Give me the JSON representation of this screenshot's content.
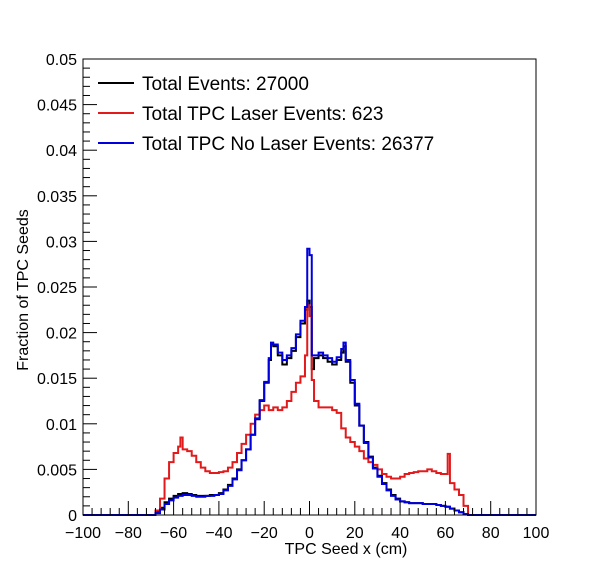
{
  "chart_data": {
    "type": "line",
    "xlabel": "TPC Seed x (cm)",
    "ylabel": "Fraction of TPC Seeds",
    "xlim": [
      -100,
      100
    ],
    "ylim": [
      0,
      0.05
    ],
    "x_ticks": [
      -100,
      -80,
      -60,
      -40,
      -20,
      0,
      20,
      40,
      60,
      80,
      100
    ],
    "x_tick_labels": [
      "−100",
      "−80",
      "−60",
      "−40",
      "−20",
      "0",
      "20",
      "40",
      "60",
      "80",
      "100"
    ],
    "y_ticks": [
      0,
      0.005,
      0.01,
      0.015,
      0.02,
      0.025,
      0.03,
      0.035,
      0.04,
      0.045,
      0.05
    ],
    "y_tick_labels": [
      "0",
      "0.005",
      "0.01",
      "0.015",
      "0.02",
      "0.025",
      "0.03",
      "0.035",
      "0.04",
      "0.045",
      "0.05"
    ],
    "grid": false,
    "legend_position": "top-left",
    "step": true,
    "series": [
      {
        "name": "Total Events: 27000",
        "color": "#000000",
        "x": [
          -100,
          -70,
          -68,
          -66,
          -64,
          -62,
          -60,
          -58,
          -56,
          -54,
          -52,
          -50,
          -48,
          -46,
          -44,
          -42,
          -40,
          -38,
          -36,
          -34,
          -32,
          -30,
          -28,
          -26,
          -24,
          -22,
          -20,
          -18,
          -17,
          -16,
          -14,
          -12,
          -10,
          -8,
          -6,
          -4,
          -2,
          -1,
          0,
          1,
          2,
          4,
          6,
          8,
          10,
          12,
          14,
          15,
          16,
          18,
          20,
          22,
          24,
          26,
          28,
          30,
          32,
          34,
          36,
          38,
          40,
          42,
          44,
          46,
          48,
          50,
          52,
          54,
          56,
          58,
          60,
          62,
          64,
          66,
          68,
          70,
          100
        ],
        "y": [
          0,
          0,
          0.0003,
          0.0008,
          0.0014,
          0.0018,
          0.0021,
          0.0023,
          0.0024,
          0.0023,
          0.0022,
          0.0021,
          0.0021,
          0.0021,
          0.0022,
          0.0022,
          0.0024,
          0.0028,
          0.0033,
          0.004,
          0.005,
          0.006,
          0.0072,
          0.0088,
          0.0105,
          0.0125,
          0.0145,
          0.017,
          0.0187,
          0.0185,
          0.0175,
          0.0165,
          0.0172,
          0.018,
          0.0195,
          0.021,
          0.0225,
          0.0235,
          0.0228,
          0.016,
          0.0172,
          0.0175,
          0.0172,
          0.0168,
          0.0165,
          0.017,
          0.0178,
          0.0185,
          0.0168,
          0.0145,
          0.012,
          0.0098,
          0.008,
          0.0064,
          0.0052,
          0.0043,
          0.0035,
          0.0028,
          0.0022,
          0.0018,
          0.0015,
          0.0014,
          0.0013,
          0.0013,
          0.0013,
          0.0012,
          0.0012,
          0.0012,
          0.0011,
          0.001,
          0.0009,
          0.0007,
          0.0005,
          0.0003,
          0.0001,
          0,
          0
        ]
      },
      {
        "name": "Total TPC Laser Events: 623",
        "color": "#e31a1c",
        "x": [
          -100,
          -70,
          -68,
          -66,
          -64,
          -62,
          -60,
          -58,
          -57,
          -56,
          -54,
          -52,
          -50,
          -48,
          -46,
          -44,
          -42,
          -40,
          -38,
          -36,
          -34,
          -32,
          -30,
          -28,
          -26,
          -24,
          -22,
          -20,
          -18,
          -16,
          -14,
          -12,
          -10,
          -8,
          -6,
          -4,
          -2,
          -1,
          0,
          1,
          2,
          4,
          6,
          8,
          10,
          12,
          14,
          16,
          18,
          20,
          22,
          24,
          26,
          28,
          30,
          32,
          34,
          36,
          38,
          40,
          42,
          44,
          46,
          48,
          50,
          52,
          54,
          56,
          58,
          60,
          61,
          62,
          64,
          66,
          68,
          70,
          100
        ],
        "y": [
          0,
          0,
          0.0005,
          0.0018,
          0.004,
          0.0058,
          0.0068,
          0.0075,
          0.0085,
          0.0072,
          0.007,
          0.0065,
          0.0058,
          0.0052,
          0.0048,
          0.0046,
          0.0046,
          0.0047,
          0.0048,
          0.0052,
          0.0058,
          0.0068,
          0.0078,
          0.0088,
          0.01,
          0.011,
          0.0115,
          0.012,
          0.0115,
          0.0118,
          0.0115,
          0.0118,
          0.0125,
          0.0135,
          0.0145,
          0.0152,
          0.0175,
          0.023,
          0.0218,
          0.0148,
          0.0125,
          0.0118,
          0.0118,
          0.0118,
          0.0115,
          0.0112,
          0.0095,
          0.0085,
          0.008,
          0.0075,
          0.007,
          0.0062,
          0.0058,
          0.0055,
          0.005,
          0.0045,
          0.0042,
          0.004,
          0.004,
          0.0042,
          0.0045,
          0.0046,
          0.0047,
          0.0048,
          0.0048,
          0.005,
          0.0048,
          0.0046,
          0.0045,
          0.0045,
          0.0067,
          0.0035,
          0.0028,
          0.0022,
          0.001,
          0,
          0
        ]
      },
      {
        "name": "Total TPC No Laser Events: 26377",
        "color": "#0000dd",
        "x": [
          -100,
          -70,
          -68,
          -66,
          -64,
          -62,
          -60,
          -58,
          -56,
          -54,
          -52,
          -50,
          -48,
          -46,
          -44,
          -42,
          -40,
          -38,
          -36,
          -34,
          -32,
          -30,
          -28,
          -26,
          -24,
          -22,
          -20,
          -18,
          -17,
          -16,
          -14,
          -12,
          -10,
          -8,
          -6,
          -4,
          -2,
          -1,
          0,
          1,
          2,
          4,
          6,
          8,
          10,
          12,
          14,
          15,
          16,
          18,
          20,
          22,
          24,
          26,
          28,
          30,
          32,
          34,
          36,
          38,
          40,
          42,
          44,
          46,
          48,
          50,
          52,
          54,
          56,
          58,
          60,
          62,
          64,
          66,
          68,
          70,
          100
        ],
        "y": [
          0,
          0,
          0.0002,
          0.0006,
          0.0012,
          0.0016,
          0.0019,
          0.0021,
          0.0022,
          0.0022,
          0.0021,
          0.002,
          0.002,
          0.0021,
          0.0021,
          0.0022,
          0.0023,
          0.0027,
          0.0032,
          0.0039,
          0.0049,
          0.006,
          0.0072,
          0.0088,
          0.0106,
          0.0126,
          0.0146,
          0.0172,
          0.0189,
          0.0187,
          0.0178,
          0.017,
          0.0175,
          0.0183,
          0.0198,
          0.0213,
          0.0228,
          0.0292,
          0.0285,
          0.0175,
          0.0175,
          0.0178,
          0.0175,
          0.0172,
          0.0168,
          0.0173,
          0.0182,
          0.0189,
          0.017,
          0.0148,
          0.0122,
          0.0098,
          0.0079,
          0.0063,
          0.0051,
          0.0042,
          0.0034,
          0.0027,
          0.0021,
          0.0017,
          0.0015,
          0.0014,
          0.0013,
          0.0013,
          0.0013,
          0.0012,
          0.0012,
          0.0012,
          0.0011,
          0.001,
          0.0009,
          0.0007,
          0.0005,
          0.0003,
          0.0001,
          0,
          0
        ]
      }
    ]
  }
}
